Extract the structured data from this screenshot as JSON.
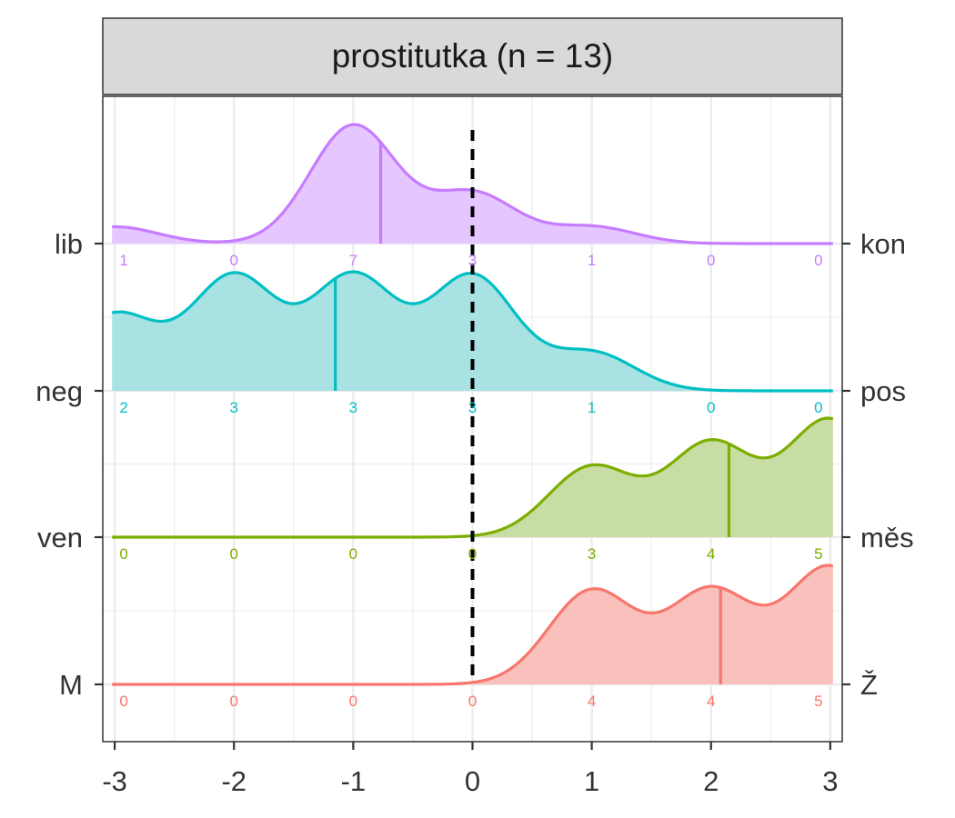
{
  "chart_data": {
    "type": "ridgeline",
    "title": "prostitutka (n = 13)",
    "xlabel": "",
    "ylabel": "",
    "x_ticks": [
      -3,
      -2,
      -1,
      0,
      1,
      2,
      3
    ],
    "x_tick_labels": [
      "-3",
      "-2",
      "-1",
      "0",
      "1",
      "2",
      "3"
    ],
    "xlim": [
      -3.1,
      3.1
    ],
    "grid": true,
    "reference_line": {
      "x": 0,
      "style": "dashed"
    },
    "scale_points": [
      -3,
      -2,
      -1,
      0,
      1,
      2,
      3
    ],
    "series": [
      {
        "left_label": "lib",
        "right_label": "kon",
        "color": "#C77CFF",
        "counts": [
          1,
          0,
          7,
          3,
          1,
          0,
          0
        ],
        "mean": -0.77
      },
      {
        "left_label": "neg",
        "right_label": "pos",
        "color": "#00BFC4",
        "counts": [
          2,
          3,
          3,
          3,
          1,
          0,
          0
        ],
        "mean": -1.15
      },
      {
        "left_label": "ven",
        "right_label": "měs",
        "color": "#7CAE00",
        "counts": [
          0,
          0,
          0,
          0,
          3,
          4,
          5
        ],
        "mean": 2.15
      },
      {
        "left_label": "M",
        "right_label": "Ž",
        "color": "#F8766D",
        "counts": [
          0,
          0,
          0,
          0,
          4,
          4,
          5
        ],
        "mean": 2.08
      }
    ]
  }
}
